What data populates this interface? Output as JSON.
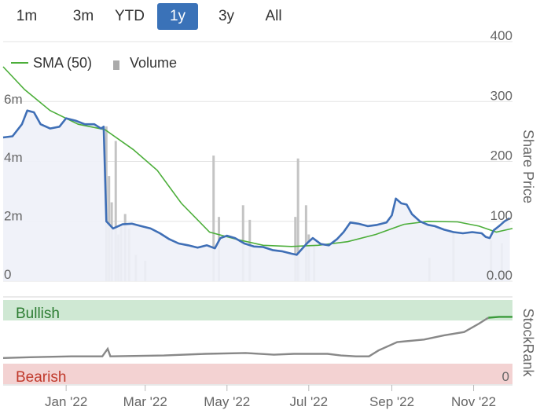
{
  "range_selector": {
    "buttons": [
      "1m",
      "3m",
      "YTD",
      "1y",
      "3y",
      "All"
    ],
    "active": "1y"
  },
  "colors": {
    "price_line": "#3f6fb6",
    "price_fill": "#eef1f8",
    "sma_line": "#4cae3a",
    "volume_bar": "#c4c4c4",
    "stockrank_line": "#888888",
    "stockrank_recent": "#3a9a3a",
    "bullish_band": "#cfe8d3",
    "bullish_text": "#2d7d32",
    "bearish_band": "#f3d2d2",
    "bearish_text": "#c0392b",
    "active_button": "#3a72b8",
    "grid": "#e3e3e3"
  },
  "chart_data": {
    "type": "line",
    "legend": {
      "placement": "top-left",
      "entries": [
        {
          "name": "SMA (50)",
          "icon": "line-swatch-icon"
        },
        {
          "name": "Volume",
          "icon": "bar-swatch-icon"
        }
      ]
    },
    "x_axis": {
      "ticks": [
        "Jan '22",
        "Mar '22",
        "May '22",
        "Jul '22",
        "Sep '22",
        "Nov '22"
      ],
      "range": [
        "2021-11-15",
        "2022-11-30"
      ]
    },
    "price_axis": {
      "label": "Share Price",
      "ticks": [
        "0.00",
        "100",
        "200",
        "300",
        "400"
      ],
      "range": [
        0,
        400
      ],
      "grid": true
    },
    "volume_axis": {
      "ticks": [
        "0",
        "2m",
        "4m",
        "6m"
      ],
      "range": [
        0,
        8.2
      ]
    },
    "series": [
      {
        "name": "Share Price",
        "points": [
          [
            "2021-11-15",
            240
          ],
          [
            "2021-11-22",
            242
          ],
          [
            "2021-11-29",
            262
          ],
          [
            "2021-12-03",
            285
          ],
          [
            "2021-12-08",
            282
          ],
          [
            "2021-12-13",
            262
          ],
          [
            "2021-12-20",
            255
          ],
          [
            "2021-12-27",
            258
          ],
          [
            "2022-01-01",
            272
          ],
          [
            "2022-01-08",
            268
          ],
          [
            "2022-01-15",
            262
          ],
          [
            "2022-01-22",
            262
          ],
          [
            "2022-01-27",
            255
          ],
          [
            "2022-01-29",
            258
          ],
          [
            "2022-01-31",
            100
          ],
          [
            "2022-02-05",
            88
          ],
          [
            "2022-02-12",
            95
          ],
          [
            "2022-02-19",
            96
          ],
          [
            "2022-02-26",
            92
          ],
          [
            "2022-03-05",
            88
          ],
          [
            "2022-03-12",
            80
          ],
          [
            "2022-03-19",
            70
          ],
          [
            "2022-03-26",
            63
          ],
          [
            "2022-04-02",
            60
          ],
          [
            "2022-04-09",
            56
          ],
          [
            "2022-04-16",
            60
          ],
          [
            "2022-04-22",
            55
          ],
          [
            "2022-04-26",
            72
          ],
          [
            "2022-05-01",
            76
          ],
          [
            "2022-05-07",
            72
          ],
          [
            "2022-05-14",
            63
          ],
          [
            "2022-05-21",
            58
          ],
          [
            "2022-05-28",
            57
          ],
          [
            "2022-06-04",
            52
          ],
          [
            "2022-06-11",
            50
          ],
          [
            "2022-06-18",
            46
          ],
          [
            "2022-06-22",
            44
          ],
          [
            "2022-06-26",
            54
          ],
          [
            "2022-06-30",
            64
          ],
          [
            "2022-07-04",
            72
          ],
          [
            "2022-07-10",
            62
          ],
          [
            "2022-07-16",
            60
          ],
          [
            "2022-07-22",
            70
          ],
          [
            "2022-07-27",
            82
          ],
          [
            "2022-08-01",
            98
          ],
          [
            "2022-08-07",
            96
          ],
          [
            "2022-08-14",
            92
          ],
          [
            "2022-08-21",
            94
          ],
          [
            "2022-08-28",
            98
          ],
          [
            "2022-09-01",
            110
          ],
          [
            "2022-09-04",
            138
          ],
          [
            "2022-09-08",
            130
          ],
          [
            "2022-09-12",
            128
          ],
          [
            "2022-09-16",
            112
          ],
          [
            "2022-09-22",
            100
          ],
          [
            "2022-09-28",
            94
          ],
          [
            "2022-10-03",
            92
          ],
          [
            "2022-10-10",
            86
          ],
          [
            "2022-10-17",
            82
          ],
          [
            "2022-10-24",
            80
          ],
          [
            "2022-10-31",
            82
          ],
          [
            "2022-11-07",
            80
          ],
          [
            "2022-11-10",
            74
          ],
          [
            "2022-11-13",
            72
          ],
          [
            "2022-11-16",
            85
          ],
          [
            "2022-11-20",
            92
          ],
          [
            "2022-11-24",
            100
          ],
          [
            "2022-11-28",
            105
          ]
        ]
      },
      {
        "name": "SMA (50)",
        "points": [
          [
            "2021-11-15",
            358
          ],
          [
            "2021-12-01",
            320
          ],
          [
            "2021-12-20",
            285
          ],
          [
            "2022-01-10",
            262
          ],
          [
            "2022-01-30",
            253
          ],
          [
            "2022-02-20",
            220
          ],
          [
            "2022-03-10",
            185
          ],
          [
            "2022-03-28",
            130
          ],
          [
            "2022-04-18",
            82
          ],
          [
            "2022-05-08",
            70
          ],
          [
            "2022-05-28",
            60
          ],
          [
            "2022-06-18",
            58
          ],
          [
            "2022-07-08",
            60
          ],
          [
            "2022-07-30",
            66
          ],
          [
            "2022-08-20",
            78
          ],
          [
            "2022-09-10",
            95
          ],
          [
            "2022-09-28",
            100
          ],
          [
            "2022-10-20",
            99
          ],
          [
            "2022-11-05",
            92
          ],
          [
            "2022-11-18",
            82
          ],
          [
            "2022-11-30",
            88
          ]
        ]
      },
      {
        "name": "Volume",
        "unit": "m",
        "values_desc": "daily volume, millions",
        "points": [
          [
            "2022-01-31",
            5.3
          ],
          [
            "2022-02-02",
            3.6
          ],
          [
            "2022-02-04",
            2.7
          ],
          [
            "2022-02-07",
            4.8
          ],
          [
            "2022-02-09",
            1.6
          ],
          [
            "2022-02-11",
            1.9
          ],
          [
            "2022-02-14",
            2.3
          ],
          [
            "2022-02-17",
            1.8
          ],
          [
            "2022-02-22",
            0.9
          ],
          [
            "2022-03-01",
            0.7
          ],
          [
            "2022-04-21",
            4.3
          ],
          [
            "2022-04-25",
            2.2
          ],
          [
            "2022-05-13",
            2.6
          ],
          [
            "2022-05-18",
            2.1
          ],
          [
            "2022-06-21",
            2.2
          ],
          [
            "2022-06-23",
            4.2
          ],
          [
            "2022-06-29",
            2.6
          ],
          [
            "2022-07-01",
            1.6
          ],
          [
            "2022-07-05",
            1.2
          ],
          [
            "2022-09-29",
            0.8
          ],
          [
            "2022-10-17",
            1.7
          ],
          [
            "2022-11-14",
            1.4
          ],
          [
            "2022-11-22",
            1.3
          ]
        ]
      }
    ]
  },
  "stockrank": {
    "label": "StockRank",
    "bullish_label": "Bullish",
    "bearish_label": "Bearish",
    "bearish_value": "0",
    "range": [
      0,
      100
    ],
    "points": [
      [
        "2021-11-15",
        31
      ],
      [
        "2021-12-05",
        32
      ],
      [
        "2022-01-05",
        33
      ],
      [
        "2022-01-28",
        33
      ],
      [
        "2022-02-01",
        42
      ],
      [
        "2022-02-03",
        33
      ],
      [
        "2022-03-15",
        34
      ],
      [
        "2022-04-15",
        36
      ],
      [
        "2022-05-15",
        37
      ],
      [
        "2022-06-05",
        35
      ],
      [
        "2022-06-20",
        36
      ],
      [
        "2022-07-15",
        36
      ],
      [
        "2022-07-25",
        34
      ],
      [
        "2022-08-05",
        33
      ],
      [
        "2022-08-15",
        33
      ],
      [
        "2022-08-22",
        40
      ],
      [
        "2022-09-05",
        50
      ],
      [
        "2022-09-25",
        53
      ],
      [
        "2022-10-10",
        58
      ],
      [
        "2022-10-25",
        62
      ],
      [
        "2022-11-05",
        72
      ],
      [
        "2022-11-12",
        79
      ],
      [
        "2022-11-20",
        80
      ],
      [
        "2022-11-30",
        80
      ]
    ]
  }
}
